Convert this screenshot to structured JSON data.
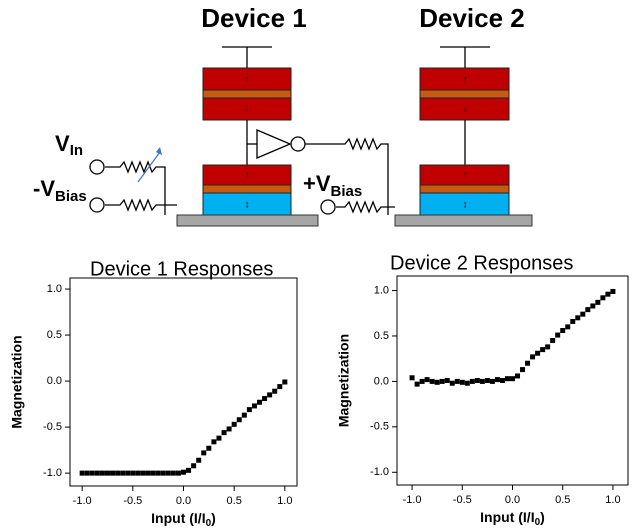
{
  "diagram": {
    "device_labels": [
      "Device 1",
      "Device 2"
    ],
    "vin": {
      "main": "V",
      "sub": "In"
    },
    "vbias_neg": {
      "main": "-V",
      "sub": "Bias"
    },
    "vbias_pos": {
      "main": "+V",
      "sub": "Bias"
    }
  },
  "chart_data": [
    {
      "type": "scatter",
      "title": "Device 1 Responses",
      "color": "#000000",
      "x_label": {
        "main": "Input (I/I",
        "sub": "0",
        "tail": ")"
      },
      "y_label": "Magnetization",
      "xlim": [
        -1.12,
        1.12
      ],
      "ylim": [
        -1.14,
        1.12
      ],
      "xticks": [
        {
          "value": -1,
          "label": "-1.0"
        },
        {
          "value": -0.5,
          "label": "-0.5"
        },
        {
          "value": 0,
          "label": "0.0"
        },
        {
          "value": 0.5,
          "label": "0.5"
        },
        {
          "value": 1,
          "label": "1.0"
        }
      ],
      "yticks": [
        {
          "value": -1,
          "label": "-1.0"
        },
        {
          "value": -0.5,
          "label": "-0.5"
        },
        {
          "value": 0,
          "label": "0.0"
        },
        {
          "value": 0.5,
          "label": "0.5"
        },
        {
          "value": 1,
          "label": "1.0"
        }
      ],
      "x": [
        -1,
        -0.95,
        -0.9,
        -0.85,
        -0.8,
        -0.75,
        -0.7,
        -0.65,
        -0.6,
        -0.55,
        -0.5,
        -0.45,
        -0.4,
        -0.35,
        -0.3,
        -0.25,
        -0.2,
        -0.15,
        -0.1,
        -0.05,
        0,
        0.05,
        0.1,
        0.15,
        0.2,
        0.25,
        0.3,
        0.35,
        0.4,
        0.45,
        0.5,
        0.55,
        0.6,
        0.65,
        0.7,
        0.75,
        0.8,
        0.85,
        0.9,
        0.95,
        1
      ],
      "values": [
        -1,
        -1,
        -1,
        -1,
        -1,
        -1,
        -1,
        -1,
        -1,
        -1,
        -1,
        -1,
        -1,
        -1,
        -1,
        -1,
        -1,
        -1,
        -1,
        -1,
        -0.99,
        -0.97,
        -0.92,
        -0.86,
        -0.78,
        -0.73,
        -0.66,
        -0.62,
        -0.56,
        -0.52,
        -0.47,
        -0.42,
        -0.37,
        -0.31,
        -0.27,
        -0.23,
        -0.19,
        -0.15,
        -0.11,
        -0.06,
        -0.01
      ]
    },
    {
      "type": "scatter",
      "title": "Device 2 Responses",
      "color": "#000000",
      "x_label": {
        "main": "Input (I/I",
        "sub": "0",
        "tail": ")"
      },
      "y_label": "Magnetization",
      "xlim": [
        -1.15,
        1.15
      ],
      "ylim": [
        -1.14,
        1.16
      ],
      "xticks": [
        {
          "value": -1,
          "label": "-1.0"
        },
        {
          "value": -0.5,
          "label": "-0.5"
        },
        {
          "value": 0,
          "label": "0.0"
        },
        {
          "value": 0.5,
          "label": "0.5"
        },
        {
          "value": 1,
          "label": "1.0"
        }
      ],
      "yticks": [
        {
          "value": -1,
          "label": "-1.0"
        },
        {
          "value": -0.5,
          "label": "-0.5"
        },
        {
          "value": 0,
          "label": "0.0"
        },
        {
          "value": 0.5,
          "label": "0.5"
        },
        {
          "value": 1,
          "label": "1.0"
        }
      ],
      "x": [
        -1,
        -0.95,
        -0.9,
        -0.85,
        -0.8,
        -0.75,
        -0.7,
        -0.65,
        -0.6,
        -0.55,
        -0.5,
        -0.45,
        -0.4,
        -0.35,
        -0.3,
        -0.25,
        -0.2,
        -0.15,
        -0.1,
        -0.05,
        0,
        0.05,
        0.1,
        0.15,
        0.2,
        0.25,
        0.3,
        0.35,
        0.4,
        0.45,
        0.5,
        0.55,
        0.6,
        0.65,
        0.7,
        0.75,
        0.8,
        0.85,
        0.9,
        0.95,
        1
      ],
      "values": [
        0.04,
        -0.03,
        0,
        0.02,
        0,
        -0.01,
        0,
        0.01,
        -0.02,
        0,
        -0.01,
        -0.02,
        0,
        0.01,
        0,
        0.01,
        0,
        0.02,
        0.01,
        0.03,
        0.03,
        0.06,
        0.13,
        0.2,
        0.27,
        0.31,
        0.35,
        0.38,
        0.45,
        0.51,
        0.56,
        0.6,
        0.66,
        0.7,
        0.74,
        0.79,
        0.83,
        0.87,
        0.92,
        0.96,
        0.99
      ]
    }
  ]
}
